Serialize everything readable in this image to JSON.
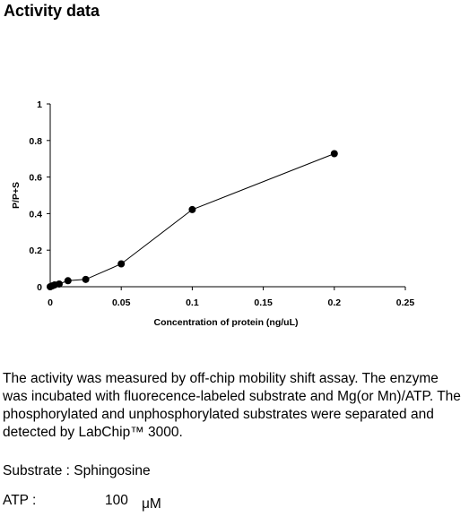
{
  "heading": "Activity data",
  "chart_data": {
    "type": "scatter",
    "title": "",
    "xlabel": "Concentration of protein (ng/uL)",
    "ylabel": "P/P+S",
    "xlim": [
      0,
      0.25
    ],
    "ylim": [
      0,
      1
    ],
    "xticks": [
      0,
      0.05,
      0.1,
      0.15,
      0.2,
      0.25
    ],
    "xtick_labels": [
      "0",
      "0.05",
      "0.1",
      "0.15",
      "0.2",
      "0.25"
    ],
    "yticks": [
      0,
      0.2,
      0.4,
      0.6,
      0.8,
      1
    ],
    "ytick_labels": [
      "0",
      "0.2",
      "0.4",
      "0.6",
      "0.8",
      "1"
    ],
    "grid": false,
    "legend": "none",
    "line": true,
    "series": [
      {
        "x": [
          0,
          0.0016,
          0.0031,
          0.0063,
          0.0125,
          0.025,
          0.05,
          0.1,
          0.2
        ],
        "y": [
          0.0,
          0.005,
          0.01,
          0.015,
          0.033,
          0.04,
          0.125,
          0.422,
          0.728
        ]
      }
    ]
  },
  "description": "The activity was measured by off-chip mobility shift assay. The enzyme was incubated with fluorecence-labeled  substrate and Mg(or Mn)/ATP. The phosphorylated and unphosphorylated substrates were separated and detected by LabChip™ 3000.",
  "substrate_line": "Substrate : Sphingosine",
  "atp": {
    "label": "ATP :",
    "value": "100",
    "unit": "μM"
  }
}
